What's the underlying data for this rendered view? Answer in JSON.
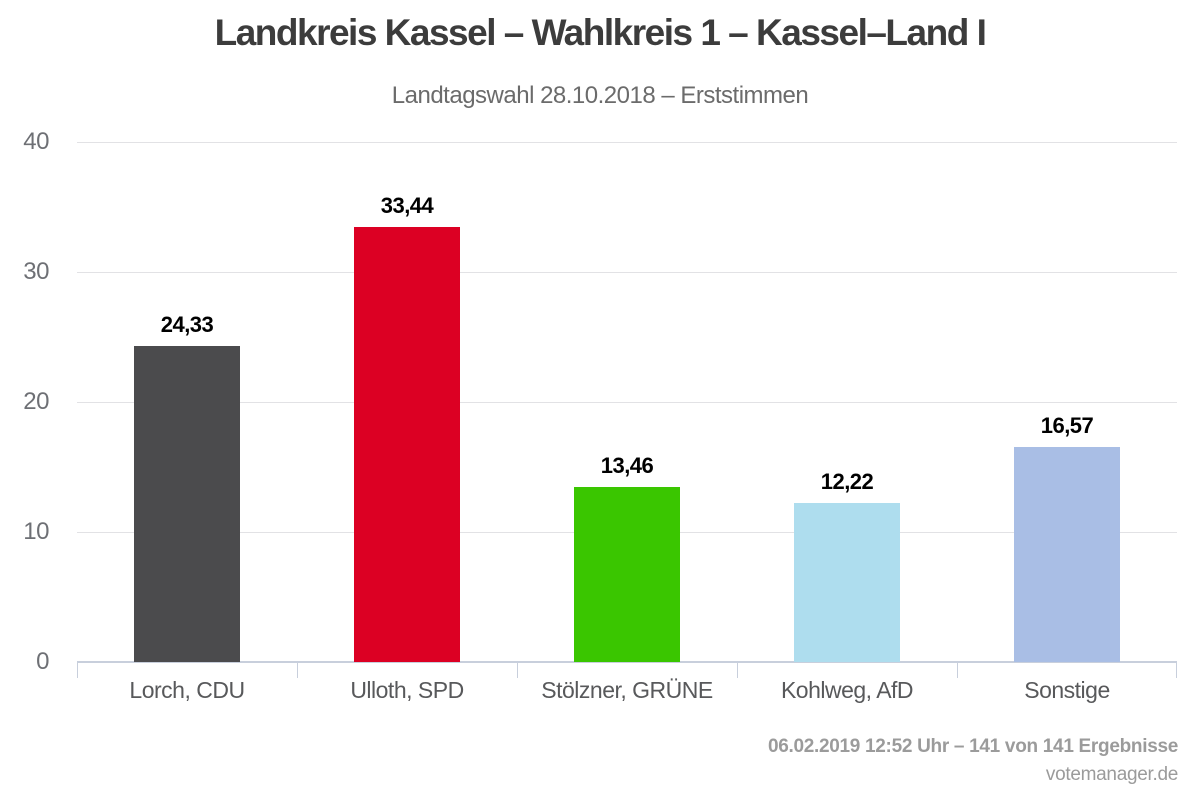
{
  "header": {
    "title": "Landkreis Kassel – Wahlkreis 1 – Kassel–Land I",
    "subtitle": "Landtagswahl 28.10.2018 – Erststimmen"
  },
  "chart_data": {
    "type": "bar",
    "categories": [
      "Lorch, CDU",
      "Ulloth, SPD",
      "Stölzner, GRÜNE",
      "Kohlweg, AfD",
      "Sonstige"
    ],
    "values": [
      24.33,
      33.44,
      13.46,
      12.22,
      16.57
    ],
    "value_labels": [
      "24,33",
      "33,44",
      "13,46",
      "12,22",
      "16,57"
    ],
    "bar_colors": [
      "#4B4B4D",
      "#DC0023",
      "#3AC600",
      "#AEDDEE",
      "#A9BEE5"
    ],
    "title": "Landkreis Kassel – Wahlkreis 1 – Kassel–Land I",
    "subtitle": "Landtagswahl 28.10.2018 – Erststimmen",
    "xlabel": "",
    "ylabel": "",
    "ylim": [
      0,
      40
    ],
    "yticks": [
      0,
      10,
      20,
      30,
      40
    ],
    "grid": true,
    "legend_position": "none"
  },
  "footer": {
    "status": "06.02.2019 12:52 Uhr – 141 von 141 Ergebnisse",
    "source": "votemanager.de"
  },
  "colors": {
    "title": "#3C3C3C",
    "subtitle": "#6B6B6B",
    "grid": "#E2E2E5",
    "axis": "#C8CFDC",
    "y_tick_label": "#6E7075",
    "category_label": "#58595B",
    "value_label": "#000000",
    "footer_text": "#9B9B9B"
  }
}
